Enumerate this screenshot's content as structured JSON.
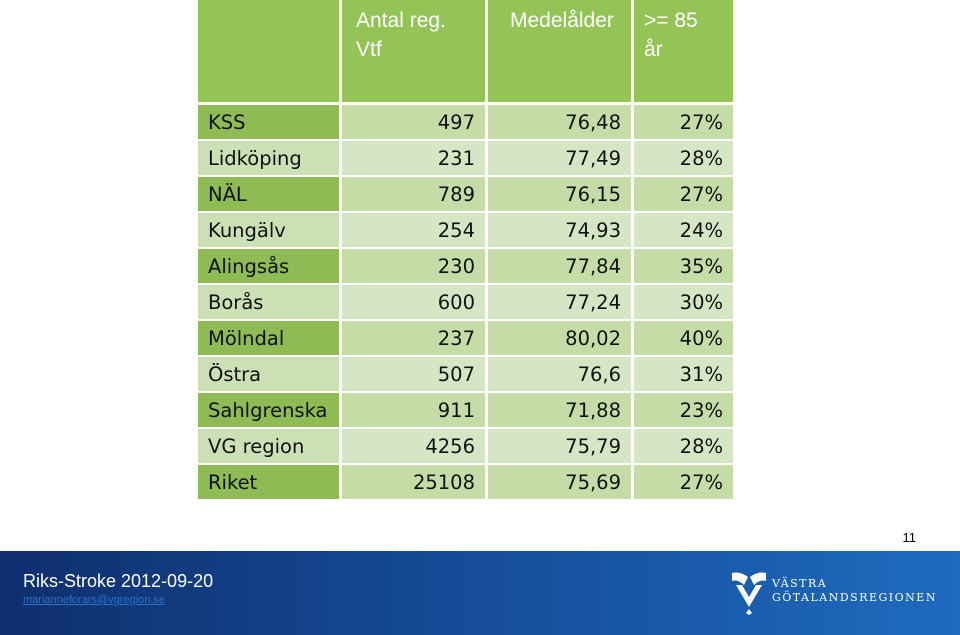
{
  "table": {
    "headers": [
      "",
      "Antal reg.\nVtf",
      "Medelålder",
      ">= 85\når"
    ],
    "rows": [
      [
        "KSS",
        "497",
        "76,48",
        "27%"
      ],
      [
        "Lidköping",
        "231",
        "77,49",
        "28%"
      ],
      [
        "NÄL",
        "789",
        "76,15",
        "27%"
      ],
      [
        "Kungälv",
        "254",
        "74,93",
        "24%"
      ],
      [
        "Alingsås",
        "230",
        "77,84",
        "35%"
      ],
      [
        "Borås",
        "600",
        "77,24",
        "30%"
      ],
      [
        "Mölndal",
        "237",
        "80,02",
        "40%"
      ],
      [
        "Östra",
        "507",
        "76,6",
        "31%"
      ],
      [
        "Sahlgrenska",
        "911",
        "71,88",
        "23%"
      ],
      [
        "VG region",
        "4256",
        "75,79",
        "28%"
      ],
      [
        "Riket",
        "25108",
        "75,69",
        "27%"
      ]
    ]
  },
  "page_number": "11",
  "footer": {
    "title": "Riks-Stroke 2012-09-20",
    "email": "mariannefor​ars@vgregion.se"
  },
  "logo": {
    "line1": "VÄSTRA",
    "line2": "GÖTALANDSREGIONEN"
  },
  "colors": {
    "header_green": "#94c356",
    "row_dark": "#c5dca7",
    "row_light": "#d6e6c5",
    "footer_blue": "#154a95"
  }
}
